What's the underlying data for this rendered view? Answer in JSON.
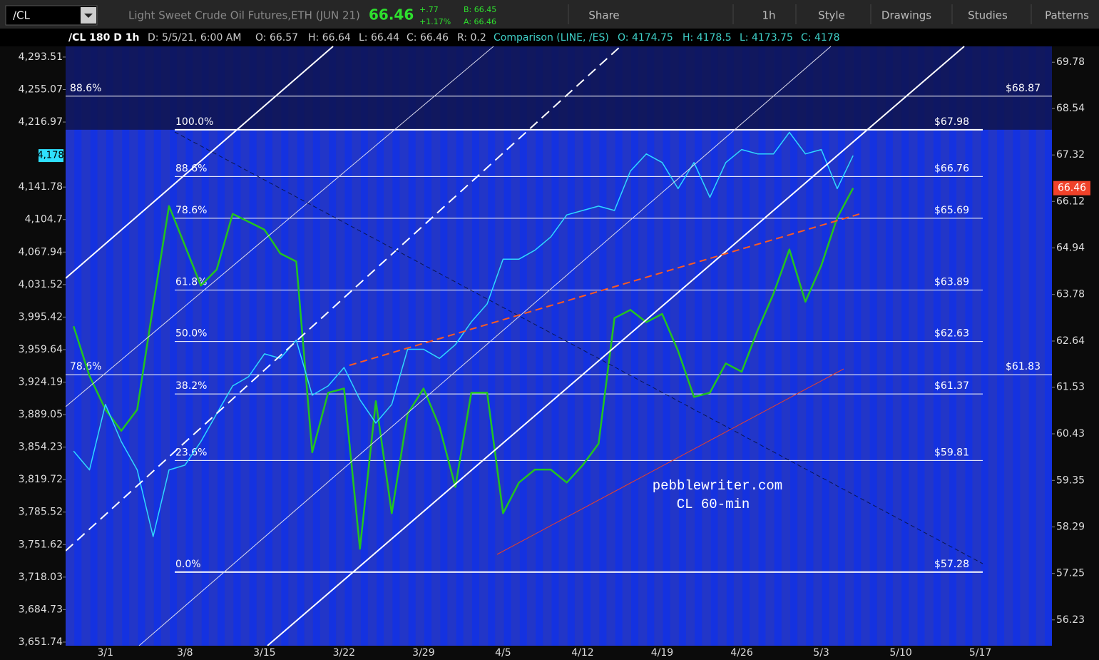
{
  "toolbar": {
    "symbol": "/CL",
    "description": "Light Sweet Crude Oil Futures,ETH (JUN 21)",
    "last": "66.46",
    "change": "+.77",
    "change_pct": "+1.17%",
    "bid": "B: 66.45",
    "ask": "A: 66.46",
    "buttons": [
      "Share",
      "1h",
      "Style",
      "Drawings",
      "Studies",
      "Patterns"
    ]
  },
  "info_bar": [
    "/CL 180 D 1h",
    "D: 5/5/21, 6:00 AM",
    "O: 66.57",
    "H: 66.64",
    "L: 66.44",
    "C: 66.46",
    "R: 0.2",
    "Comparison (LINE, /ES)",
    "O: 4174.75",
    "H: 4178.5",
    "L: 4173.75",
    "C: 4178"
  ],
  "chart_data": {
    "type": "line",
    "log_scale": true,
    "grid": false,
    "categories": [
      null,
      null,
      "3/1",
      null,
      null,
      null,
      null,
      "3/8",
      null,
      null,
      null,
      null,
      "3/15",
      null,
      null,
      null,
      null,
      "3/22",
      null,
      null,
      null,
      null,
      "3/29",
      null,
      null,
      null,
      null,
      "4/5",
      null,
      null,
      null,
      null,
      "4/12",
      null,
      null,
      null,
      null,
      "4/19",
      null,
      null,
      null,
      null,
      "4/26",
      null,
      null,
      null,
      null,
      "5/3",
      null,
      null,
      null,
      null,
      "5/10",
      null,
      null,
      null,
      null,
      "5/17",
      null,
      null,
      null,
      null
    ],
    "series": [
      {
        "color": "#23c41e",
        "axis": "y2",
        "values": [
          63.0,
          61.8,
          61.0,
          60.5,
          61.0,
          63.5,
          66.0,
          65.0,
          64.0,
          64.4,
          65.8,
          65.6,
          65.4,
          64.8,
          64.6,
          60.0,
          61.4,
          61.5,
          57.8,
          61.2,
          58.6,
          60.9,
          61.5,
          60.6,
          59.2,
          61.4,
          61.4,
          58.6,
          59.3,
          59.6,
          59.6,
          59.3,
          59.7,
          60.2,
          63.2,
          63.4,
          63.1,
          63.3,
          62.4,
          61.3,
          61.4,
          62.1,
          61.9,
          62.9,
          63.8,
          64.9,
          63.6,
          64.5,
          65.7,
          66.46,
          null,
          null,
          null,
          null,
          null,
          null,
          null,
          null,
          null,
          null,
          null,
          null
        ]
      },
      {
        "color": "#2fd8ff",
        "axis": "y",
        "values": [
          3850,
          3830,
          3900,
          3860,
          3830,
          3760,
          3830,
          3835,
          3860,
          3890,
          3920,
          3930,
          3955,
          3950,
          3970,
          3910,
          3920,
          3940,
          3905,
          3880,
          3900,
          3960,
          3960,
          3950,
          3965,
          3990,
          4010,
          4060,
          4060,
          4070,
          4085,
          4110,
          4115,
          4120,
          4115,
          4160,
          4180,
          4170,
          4140,
          4170,
          4130,
          4170,
          4185,
          4180,
          4180,
          4205,
          4180,
          4185,
          4140,
          4178,
          null,
          null,
          null,
          null,
          null,
          null,
          null,
          null,
          null,
          null,
          null,
          null
        ]
      }
    ],
    "ylim": [
      3648.1,
      4306.2
    ],
    "yticks": [
      {
        "value": 4293.51,
        "label": "4,293.51"
      },
      {
        "value": 4255.07,
        "label": "4,255.07"
      },
      {
        "value": 4216.97,
        "label": "4,216.97"
      },
      {
        "value": 4141.78,
        "label": "4,141.78"
      },
      {
        "value": 4104.7,
        "label": "4,104.7"
      },
      {
        "value": 4067.94,
        "label": "4,067.94"
      },
      {
        "value": 4031.52,
        "label": "4,031.52"
      },
      {
        "value": 3995.42,
        "label": "3,995.42"
      },
      {
        "value": 3959.64,
        "label": "3,959.64"
      },
      {
        "value": 3924.19,
        "label": "3,924.19"
      },
      {
        "value": 3889.05,
        "label": "3,889.05"
      },
      {
        "value": 3854.23,
        "label": "3,854.23"
      },
      {
        "value": 3819.72,
        "label": "3,819.72"
      },
      {
        "value": 3785.52,
        "label": "3,785.52"
      },
      {
        "value": 3751.62,
        "label": "3,751.62"
      },
      {
        "value": 3718.03,
        "label": "3,718.03"
      },
      {
        "value": 3684.73,
        "label": "3,684.73"
      },
      {
        "value": 3651.74,
        "label": "3,651.74"
      }
    ],
    "y2lim": [
      55.67,
      70.21
    ],
    "y2ticks": [
      69.78,
      68.54,
      67.32,
      66.12,
      64.94,
      63.78,
      62.64,
      61.53,
      60.43,
      59.35,
      58.29,
      57.25,
      56.23
    ],
    "y_marker": {
      "value": 4178,
      "label": "4,178"
    },
    "y2_marker": 66.46,
    "fib_levels": [
      {
        "label": "100.0%",
        "price": 67.98,
        "price_label": "$67.98"
      },
      {
        "label": "88.6%",
        "price": 66.76,
        "price_label": "$66.76"
      },
      {
        "label": "78.6%",
        "price": 65.69,
        "price_label": "$65.69"
      },
      {
        "label": "61.8%",
        "price": 63.89,
        "price_label": "$63.89"
      },
      {
        "label": "50.0%",
        "price": 62.63,
        "price_label": "$62.63"
      },
      {
        "label": "38.2%",
        "price": 61.37,
        "price_label": "$61.37"
      },
      {
        "label": "23.6%",
        "price": 59.81,
        "price_label": "$59.81"
      },
      {
        "label": "0.0%",
        "price": 57.28,
        "price_label": "$57.28"
      }
    ],
    "fib_levels_outer": [
      {
        "label": "88.6%",
        "price": 68.87,
        "price_label": "$68.87"
      },
      {
        "label": "78.6%",
        "price": 61.83,
        "price_label": "$61.83"
      }
    ],
    "annotations": [
      "pebblewriter.com",
      "CL 60-min"
    ]
  }
}
